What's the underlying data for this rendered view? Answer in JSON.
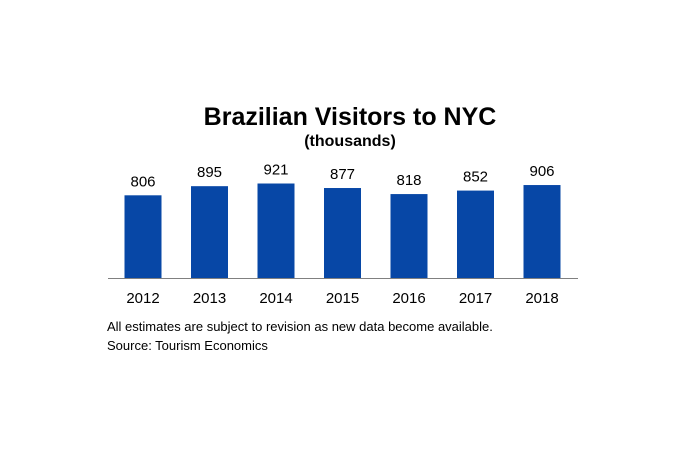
{
  "chart_data": {
    "type": "bar",
    "title": "Brazilian Visitors to NYC",
    "subtitle": "(thousands)",
    "categories": [
      "2012",
      "2013",
      "2014",
      "2015",
      "2016",
      "2017",
      "2018"
    ],
    "values": [
      806,
      895,
      921,
      877,
      818,
      852,
      906
    ],
    "xlabel": "",
    "ylabel": "",
    "grid": false,
    "legend": "none",
    "bar_color": "#0747A6",
    "axis_color": "#808080"
  },
  "notes": {
    "disclaimer": "All estimates are subject to revision as new data become available.",
    "source": "Source: Tourism Economics"
  }
}
